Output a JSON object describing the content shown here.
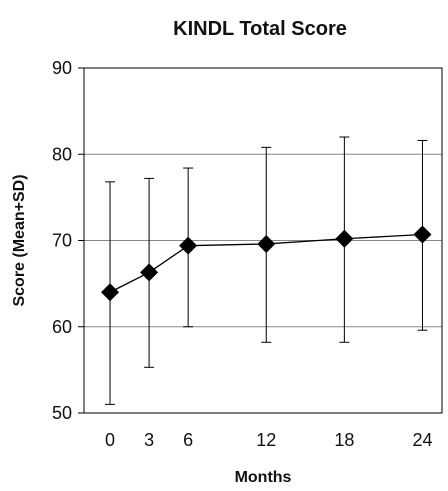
{
  "chart_data": {
    "type": "line",
    "title": "KINDL Total Score",
    "xlabel": "Months",
    "ylabel": "Score (Mean+SD)",
    "x": [
      0,
      3,
      6,
      12,
      18,
      24
    ],
    "xticks": [
      "0",
      "3",
      "6",
      "12",
      "18",
      "24"
    ],
    "yticks": [
      "50",
      "60",
      "70",
      "80",
      "90"
    ],
    "ylim": [
      50,
      90
    ],
    "xlim": [
      -2,
      25.5
    ],
    "grid": true,
    "series": [
      {
        "mean": [
          64.0,
          66.3,
          69.4,
          69.6,
          70.2,
          70.7
        ],
        "sd_upper": [
          76.8,
          77.2,
          78.4,
          80.8,
          82.0,
          81.6
        ],
        "sd_lower": [
          51.0,
          55.3,
          60.0,
          58.2,
          58.2,
          59.6
        ]
      }
    ],
    "colors": {
      "line": "#000000",
      "marker": "#000000",
      "grid": "#888888"
    }
  }
}
